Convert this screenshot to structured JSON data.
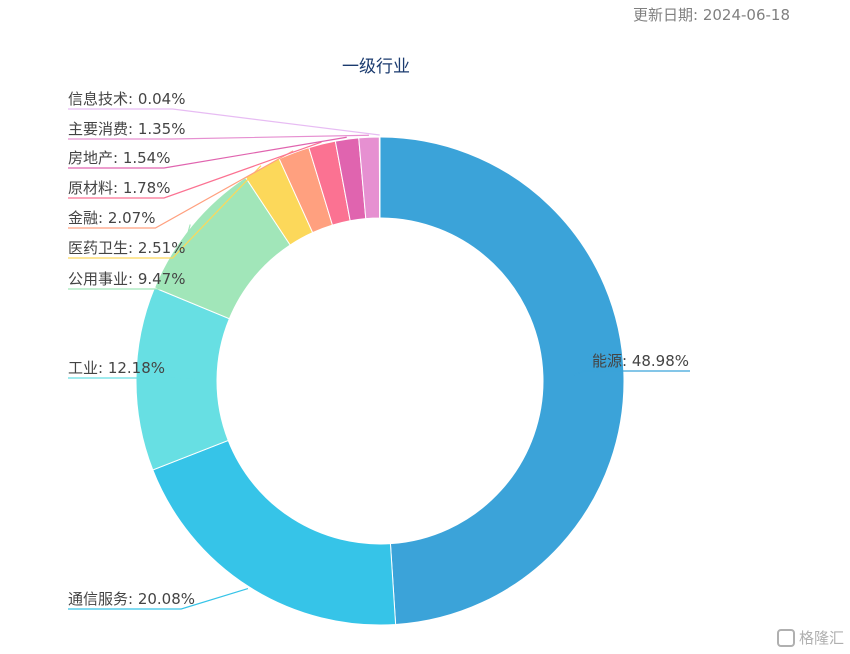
{
  "update_date": "更新日期: 2024-06-18",
  "chart_data": {
    "type": "donut",
    "title": "一级行业",
    "slices": [
      {
        "name": "能源",
        "value": 48.98,
        "label": "能源: 48.98%",
        "color": "#3ba3d9"
      },
      {
        "name": "通信服务",
        "value": 20.08,
        "label": "通信服务: 20.08%",
        "color": "#36c4e8"
      },
      {
        "name": "工业",
        "value": 12.18,
        "label": "工业: 12.18%",
        "color": "#67dfe3"
      },
      {
        "name": "公用事业",
        "value": 9.47,
        "label": "公用事业: 9.47%",
        "color": "#a1e6b9"
      },
      {
        "name": "医药卫生",
        "value": 2.51,
        "label": "医药卫生: 2.51%",
        "color": "#fcd85a"
      },
      {
        "name": "金融",
        "value": 2.07,
        "label": "金融: 2.07%",
        "color": "#ffa07f"
      },
      {
        "name": "原材料",
        "value": 1.78,
        "label": "原材料: 1.78%",
        "color": "#fb7292"
      },
      {
        "name": "房地产",
        "value": 1.54,
        "label": "房地产: 1.54%",
        "color": "#e064af"
      },
      {
        "name": "主要消费",
        "value": 1.35,
        "label": "主要消费: 1.35%",
        "color": "#e690d1"
      },
      {
        "name": "信息技术",
        "value": 0.04,
        "label": "信息技术: 0.04%",
        "color": "#e7bcf3"
      }
    ]
  },
  "watermark": "格隆汇"
}
